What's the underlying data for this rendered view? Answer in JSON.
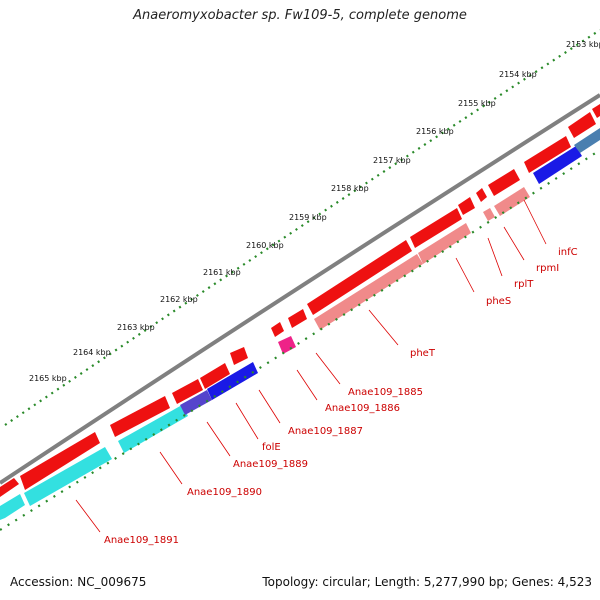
{
  "title": "Anaeromyxobacter sp. Fw109-5, complete genome",
  "accession": "Accession: NC_009675",
  "topology": "Topology: circular; Length: 5,277,990 bp; Genes: 4,523",
  "colors": {
    "backbone": "#808080",
    "forward_gene": "#ee0000",
    "forward_light": "#f08080",
    "trna": "#ee2288",
    "reverse_cyan": "#33e0e0",
    "reverse_blue": "#1a1ae6",
    "reverse_steel": "#4a7fb0",
    "ruler_dots": "#2a8a2a",
    "label": "#cc0000"
  },
  "ruler_ticks": [
    "2153 kbp",
    "2154 kbp",
    "2155 kbp",
    "2156 kbp",
    "2157 kbp",
    "2158 kbp",
    "2159 kbp",
    "2160 kbp",
    "2161 kbp",
    "2162 kbp",
    "2163 kbp",
    "2164 kbp",
    "2165 kbp"
  ],
  "gene_labels": [
    "infC",
    "rpmI",
    "rplT",
    "pheS",
    "pheT",
    "Anae109_1885",
    "Anae109_1886",
    "Anae109_1887",
    "folE",
    "Anae109_1889",
    "Anae109_1890",
    "Anae109_1891"
  ]
}
